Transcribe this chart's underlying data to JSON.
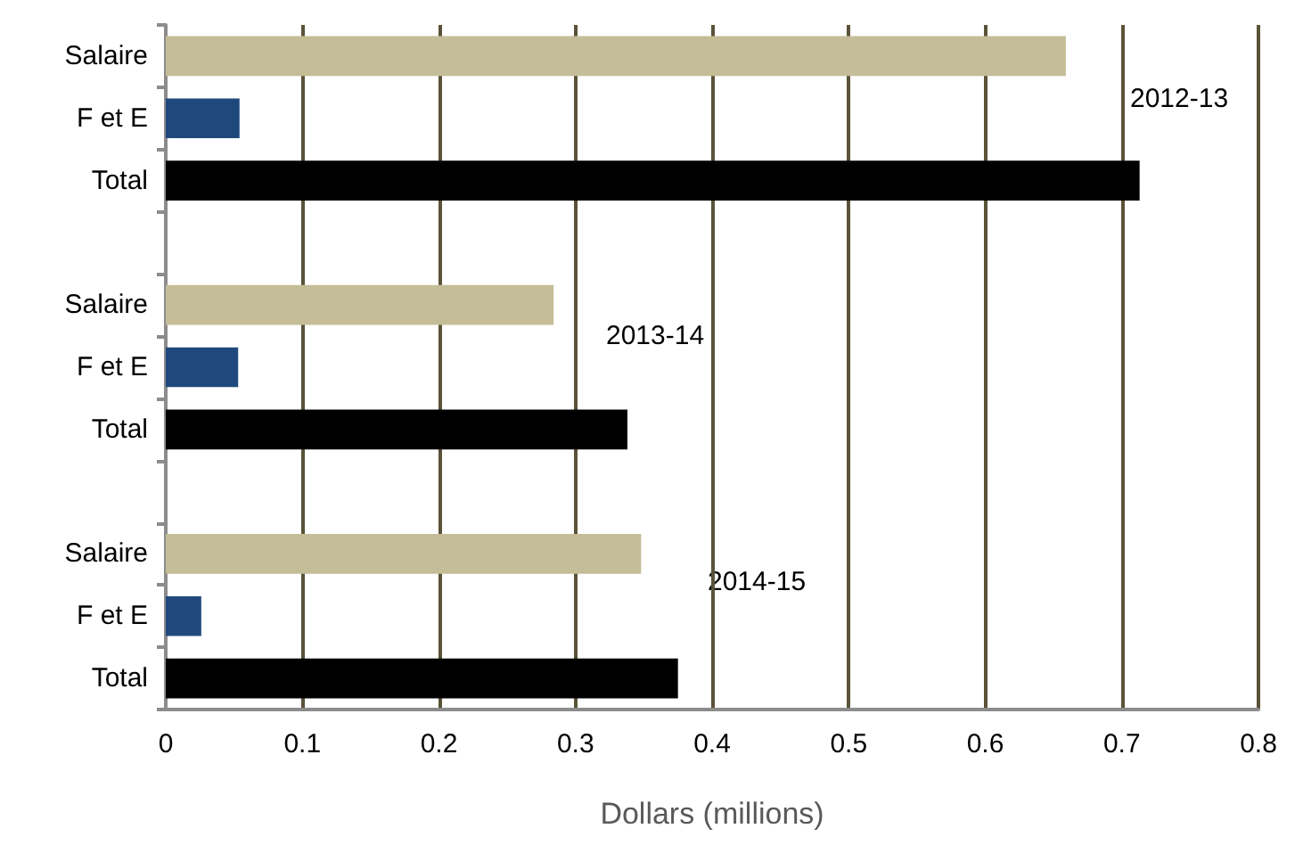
{
  "chart_data": {
    "type": "bar",
    "orientation": "horizontal",
    "xlabel": "Dollars (millions)",
    "categories": [
      "Salaire",
      "F et E",
      "Total",
      null,
      "Salaire",
      "F et E",
      "Total",
      null,
      "Salaire",
      "F et E",
      "Total"
    ],
    "values": [
      0.659,
      0.054,
      0.713,
      null,
      0.284,
      0.053,
      0.338,
      null,
      0.348,
      0.026,
      0.375
    ],
    "colors": [
      "#c4bd97",
      "#1f497d",
      "#000000",
      null,
      "#c4bd97",
      "#1f497d",
      "#000000",
      null,
      "#c4bd97",
      "#1f497d",
      "#000000"
    ],
    "xlim": [
      0,
      0.8
    ],
    "xticks": [
      0,
      0.1,
      0.2,
      0.3,
      0.4,
      0.5,
      0.6,
      0.7,
      0.8
    ],
    "grid": "x",
    "annotations": [
      "2012-13",
      "2013-14",
      "2014-15"
    ]
  }
}
